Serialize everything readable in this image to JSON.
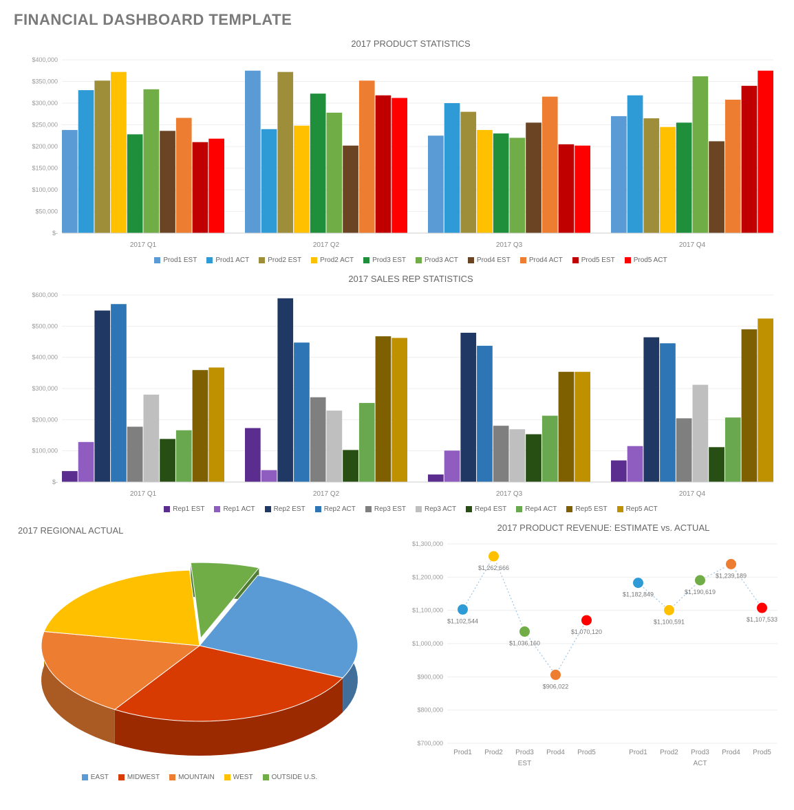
{
  "header": {
    "title": "FINANCIAL DASHBOARD TEMPLATE"
  },
  "productStats": {
    "title": "2017 PRODUCT STATISTICS",
    "type": "grouped-bar",
    "ylim": [
      0,
      400000
    ],
    "ytick_step": 50000,
    "ytick_prefix": "$",
    "grid_color": "#eeeeee",
    "background_color": "#ffffff",
    "groups": [
      "2017 Q1",
      "2017 Q2",
      "2017 Q3",
      "2017 Q4"
    ],
    "series": [
      {
        "name": "Prod1 EST",
        "color": "#5b9bd5",
        "values": [
          238000,
          375000,
          225000,
          270000
        ]
      },
      {
        "name": "Prod1 ACT",
        "color": "#2e9bd6",
        "values": [
          330000,
          240000,
          300000,
          318000
        ]
      },
      {
        "name": "Prod2 EST",
        "color": "#9e8e3a",
        "values": [
          352000,
          372000,
          280000,
          265000
        ]
      },
      {
        "name": "Prod2 ACT",
        "color": "#ffc000",
        "values": [
          372000,
          248000,
          238000,
          245000
        ]
      },
      {
        "name": "Prod3 EST",
        "color": "#1f8f3b",
        "values": [
          228000,
          322000,
          230000,
          255000
        ]
      },
      {
        "name": "Prod3 ACT",
        "color": "#70ad47",
        "values": [
          332000,
          278000,
          220000,
          362000
        ]
      },
      {
        "name": "Prod4 EST",
        "color": "#6b4423",
        "values": [
          236000,
          202000,
          255000,
          212000
        ]
      },
      {
        "name": "Prod4 ACT",
        "color": "#ed7d31",
        "values": [
          266000,
          352000,
          315000,
          308000
        ]
      },
      {
        "name": "Prod5 EST",
        "color": "#c00000",
        "values": [
          210000,
          318000,
          205000,
          340000
        ]
      },
      {
        "name": "Prod5 ACT",
        "color": "#ff0000",
        "values": [
          218000,
          312000,
          202000,
          375000
        ]
      }
    ]
  },
  "salesRep": {
    "title": "2017 SALES REP STATISTICS",
    "type": "grouped-bar",
    "ylim": [
      0,
      600000
    ],
    "ytick_step": 100000,
    "ytick_prefix": "$",
    "grid_color": "#eeeeee",
    "show_value_labels": true,
    "groups": [
      "2017 Q1",
      "2017 Q2",
      "2017 Q3",
      "2017 Q4"
    ],
    "series": [
      {
        "name": "Rep1 EST",
        "color": "#5b2d8e",
        "values": [
          35067,
          173060,
          24132,
          69305
        ],
        "labels": [
          "$35,067",
          "$173,060",
          "$24,132",
          "$69,305"
        ]
      },
      {
        "name": "Rep1 ACT",
        "color": "#8f5cc0",
        "values": [
          128354,
          38136,
          100822,
          115337
        ],
        "labels": [
          "$128,354",
          "$38,136",
          "$100,822",
          "$115,337"
        ]
      },
      {
        "name": "Rep2 EST",
        "color": "#1f3864",
        "values": [
          550156,
          589399,
          478834,
          464277
        ],
        "labels": [
          "$550,156",
          "$589,399",
          "$478,834",
          "$464,277"
        ]
      },
      {
        "name": "Rep2 ACT",
        "color": "#2e75b6",
        "values": [
          570834,
          447324,
          437085,
          445048
        ],
        "labels": [
          "$570,834",
          "$447,324",
          "$437,085",
          "$445,048"
        ]
      },
      {
        "name": "Rep3 EST",
        "color": "#7f7f7f",
        "values": [
          177432,
          271904,
          180496,
          204328
        ],
        "labels": [
          "$177,432",
          "$271,904",
          "$180,496",
          "$204,328"
        ]
      },
      {
        "name": "Rep3 ACT",
        "color": "#bfbfbf",
        "values": [
          280368,
          229114,
          169257,
          311880
        ],
        "labels": [
          "$280,368",
          "$229,114",
          "$169,257",
          "$311,880"
        ]
      },
      {
        "name": "Rep4 EST",
        "color": "#274e13",
        "values": [
          138175,
          102721,
          153279,
          111847
        ],
        "labels": [
          "$138,175",
          "$102,721",
          "$153,279",
          "$111,847"
        ]
      },
      {
        "name": "Rep4 ACT",
        "color": "#6aa84f",
        "values": [
          166070,
          253563,
          212686,
          206970
        ],
        "labels": [
          "$166,070",
          "$253,563",
          "$212,686",
          "$206,970"
        ]
      },
      {
        "name": "Rep5 EST",
        "color": "#7f6000",
        "values": [
          359115,
          467489,
          353571,
          489945
        ],
        "labels": [
          "$359,115",
          "$467,489",
          "$353,571",
          "$489,945"
        ]
      },
      {
        "name": "Rep5 ACT",
        "color": "#bf9000",
        "values": [
          367289,
          462312,
          353487,
          524445
        ],
        "labels": [
          "$367,289",
          "$462,312",
          "$353,487",
          "$524,445"
        ]
      }
    ]
  },
  "regional": {
    "title": "2017 REGIONAL ACTUAL",
    "type": "pie-3d",
    "slices": [
      {
        "name": "EAST",
        "color": "#5b9bd5",
        "value": 26
      },
      {
        "name": "MIDWEST",
        "color": "#d83b01",
        "value": 27
      },
      {
        "name": "MOUNTAIN",
        "color": "#ed7d31",
        "value": 19
      },
      {
        "name": "WEST",
        "color": "#ffc000",
        "value": 21
      },
      {
        "name": "OUTSIDE U.S.",
        "color": "#70ad47",
        "value": 7
      }
    ],
    "explode_index": 4,
    "depth_color_darken": 0.72
  },
  "revenue": {
    "title": "2017 PRODUCT REVENUE: ESTIMATE vs. ACTUAL",
    "type": "dot-line",
    "ylim": [
      700000,
      1300000
    ],
    "ytick_step": 100000,
    "ytick_prefix": "$",
    "line_color": "#9cc3e4",
    "line_dash": "2,3",
    "grid_color": "#eeeeee",
    "marker_radius": 8,
    "groups": [
      {
        "name": "EST",
        "categories": [
          "Prod1",
          "Prod2",
          "Prod3",
          "Prod4",
          "Prod5"
        ]
      },
      {
        "name": "ACT",
        "categories": [
          "Prod1",
          "Prod2",
          "Prod3",
          "Prod4",
          "Prod5"
        ]
      }
    ],
    "point_colors": [
      "#2e9bd6",
      "#ffc000",
      "#70ad47",
      "#ed7d31",
      "#ff0000"
    ],
    "points": [
      {
        "group": 0,
        "cat": 0,
        "value": 1102544,
        "label": "$1,102,544"
      },
      {
        "group": 0,
        "cat": 1,
        "value": 1262666,
        "label": "$1,262,666"
      },
      {
        "group": 0,
        "cat": 2,
        "value": 1036160,
        "label": "$1,036,160"
      },
      {
        "group": 0,
        "cat": 3,
        "value": 906022,
        "label": "$906,022"
      },
      {
        "group": 0,
        "cat": 4,
        "value": 1070120,
        "label": "$1,070,120"
      },
      {
        "group": 1,
        "cat": 0,
        "value": 1182849,
        "label": "$1,182,849"
      },
      {
        "group": 1,
        "cat": 1,
        "value": 1100591,
        "label": "$1,100,591"
      },
      {
        "group": 1,
        "cat": 2,
        "value": 1190619,
        "label": "$1,190,619"
      },
      {
        "group": 1,
        "cat": 3,
        "value": 1239189,
        "label": "$1,239,189"
      },
      {
        "group": 1,
        "cat": 4,
        "value": 1107533,
        "label": "$1,107,533"
      }
    ]
  }
}
